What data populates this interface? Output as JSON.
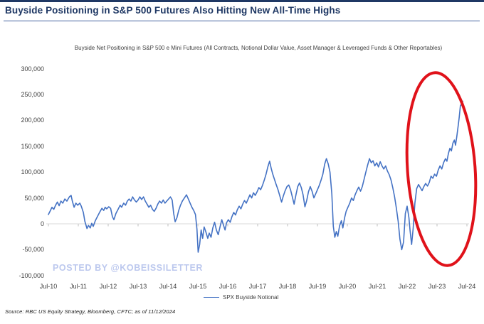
{
  "header": {
    "title": "Buyside Positioning in S&P 500 Futures Also Hitting New All-Time Highs"
  },
  "chart": {
    "subtitle": "Buyside Net Positioning in S&P 500 e Mini Futures (All Contracts, Notional Dollar Value, Asset Manager & Leveraged Funds & Other Reportables)",
    "watermark": "POSTED BY @KOBEISSILETTER",
    "legend_label": "SPX Buyside Notional"
  },
  "footer": {
    "source": "Source: RBC US Equity Strategy, Bloomberg, CFTC; as of 11/12/2024"
  },
  "colors": {
    "title_navy": "#1F3864",
    "series_blue": "#4472C4",
    "annotation_red": "#E0121A",
    "watermark_blue": "#BCC8EE",
    "axis_text": "#404040",
    "zero_line": "#D9D9D9",
    "tick_mark": "#BFBFBF"
  },
  "chart_data": {
    "type": "line",
    "title": "Buyside Net Positioning in S&P 500 e Mini Futures (All Contracts, Notional Dollar Value, Asset Manager & Leveraged Funds & Other Reportables)",
    "xlabel": "",
    "ylabel": "",
    "x_unit": "years since Jul-2010",
    "x_ticks": [
      "Jul-10",
      "Jul-11",
      "Jul-12",
      "Jul-13",
      "Jul-14",
      "Jul-15",
      "Jul-16",
      "Jul-17",
      "Jul-18",
      "Jul-19",
      "Jul-20",
      "Jul-21",
      "Jul-22",
      "Jul-23",
      "Jul-24"
    ],
    "y_ticks": [
      300000,
      250000,
      200000,
      150000,
      100000,
      50000,
      0,
      -50000,
      -100000
    ],
    "y_tick_labels": [
      "300,000",
      "250,000",
      "200,000",
      "150,000",
      "100,000",
      "50,000",
      "0",
      "-50,000",
      "-100,000"
    ],
    "ylim": [
      -100000,
      300000
    ],
    "grid": "zero-axis-only",
    "legend_position": "bottom-center",
    "annotation": {
      "shape": "ellipse",
      "color": "#E0121A",
      "covers_x": [
        "Jul-23",
        "Jul-24"
      ],
      "meaning": "circles the 2023-2024 surge to new all-time highs"
    },
    "series": [
      {
        "name": "SPX Buyside Notional",
        "color": "#4472C4",
        "points": [
          [
            0,
            18000
          ],
          [
            0.07,
            26000
          ],
          [
            0.12,
            32000
          ],
          [
            0.18,
            28000
          ],
          [
            0.24,
            36000
          ],
          [
            0.3,
            42000
          ],
          [
            0.36,
            35000
          ],
          [
            0.42,
            44000
          ],
          [
            0.48,
            40000
          ],
          [
            0.55,
            48000
          ],
          [
            0.62,
            44000
          ],
          [
            0.7,
            52000
          ],
          [
            0.76,
            55000
          ],
          [
            0.8,
            44000
          ],
          [
            0.86,
            32000
          ],
          [
            0.92,
            40000
          ],
          [
            0.98,
            36000
          ],
          [
            1.05,
            40000
          ],
          [
            1.1,
            34000
          ],
          [
            1.17,
            22000
          ],
          [
            1.22,
            5000
          ],
          [
            1.29,
            -9000
          ],
          [
            1.34,
            -3000
          ],
          [
            1.4,
            -8000
          ],
          [
            1.45,
            1000
          ],
          [
            1.5,
            -5000
          ],
          [
            1.57,
            6000
          ],
          [
            1.64,
            14000
          ],
          [
            1.72,
            23000
          ],
          [
            1.79,
            30000
          ],
          [
            1.85,
            26000
          ],
          [
            1.9,
            32000
          ],
          [
            1.95,
            29000
          ],
          [
            2.02,
            33000
          ],
          [
            2.08,
            30000
          ],
          [
            2.14,
            14000
          ],
          [
            2.19,
            8000
          ],
          [
            2.26,
            20000
          ],
          [
            2.33,
            28000
          ],
          [
            2.4,
            36000
          ],
          [
            2.45,
            32000
          ],
          [
            2.52,
            40000
          ],
          [
            2.58,
            36000
          ],
          [
            2.64,
            44000
          ],
          [
            2.7,
            48000
          ],
          [
            2.76,
            44000
          ],
          [
            2.82,
            52000
          ],
          [
            2.88,
            46000
          ],
          [
            2.94,
            42000
          ],
          [
            3,
            46000
          ],
          [
            3.06,
            52000
          ],
          [
            3.12,
            47000
          ],
          [
            3.18,
            52000
          ],
          [
            3.24,
            44000
          ],
          [
            3.3,
            38000
          ],
          [
            3.36,
            32000
          ],
          [
            3.42,
            36000
          ],
          [
            3.48,
            28000
          ],
          [
            3.54,
            24000
          ],
          [
            3.6,
            30000
          ],
          [
            3.66,
            38000
          ],
          [
            3.72,
            44000
          ],
          [
            3.78,
            40000
          ],
          [
            3.84,
            46000
          ],
          [
            3.9,
            40000
          ],
          [
            3.96,
            44000
          ],
          [
            4.02,
            48000
          ],
          [
            4.08,
            52000
          ],
          [
            4.14,
            46000
          ],
          [
            4.19,
            20000
          ],
          [
            4.24,
            4000
          ],
          [
            4.3,
            12000
          ],
          [
            4.36,
            26000
          ],
          [
            4.42,
            36000
          ],
          [
            4.48,
            44000
          ],
          [
            4.55,
            50000
          ],
          [
            4.62,
            56000
          ],
          [
            4.68,
            48000
          ],
          [
            4.74,
            40000
          ],
          [
            4.8,
            32000
          ],
          [
            4.86,
            26000
          ],
          [
            4.92,
            18000
          ],
          [
            4.97,
            -10000
          ],
          [
            5.01,
            -55000
          ],
          [
            5.06,
            -40000
          ],
          [
            5.11,
            -12000
          ],
          [
            5.16,
            -28000
          ],
          [
            5.21,
            -6000
          ],
          [
            5.27,
            -16000
          ],
          [
            5.33,
            -28000
          ],
          [
            5.38,
            -18000
          ],
          [
            5.44,
            -26000
          ],
          [
            5.5,
            -8000
          ],
          [
            5.56,
            3000
          ],
          [
            5.62,
            -12000
          ],
          [
            5.68,
            -21000
          ],
          [
            5.74,
            -6000
          ],
          [
            5.8,
            8000
          ],
          [
            5.86,
            -3000
          ],
          [
            5.91,
            -12000
          ],
          [
            5.96,
            2000
          ],
          [
            6.02,
            8000
          ],
          [
            6.08,
            3000
          ],
          [
            6.14,
            14000
          ],
          [
            6.2,
            22000
          ],
          [
            6.26,
            17000
          ],
          [
            6.32,
            27000
          ],
          [
            6.38,
            34000
          ],
          [
            6.44,
            29000
          ],
          [
            6.5,
            38000
          ],
          [
            6.56,
            45000
          ],
          [
            6.62,
            40000
          ],
          [
            6.68,
            48000
          ],
          [
            6.74,
            56000
          ],
          [
            6.8,
            50000
          ],
          [
            6.86,
            60000
          ],
          [
            6.92,
            55000
          ],
          [
            6.98,
            62000
          ],
          [
            7.04,
            70000
          ],
          [
            7.1,
            66000
          ],
          [
            7.16,
            74000
          ],
          [
            7.22,
            84000
          ],
          [
            7.28,
            96000
          ],
          [
            7.34,
            110000
          ],
          [
            7.4,
            121000
          ],
          [
            7.45,
            108000
          ],
          [
            7.5,
            97000
          ],
          [
            7.55,
            88000
          ],
          [
            7.62,
            76000
          ],
          [
            7.68,
            66000
          ],
          [
            7.74,
            54000
          ],
          [
            7.8,
            42000
          ],
          [
            7.86,
            54000
          ],
          [
            7.92,
            64000
          ],
          [
            7.98,
            72000
          ],
          [
            8.04,
            75000
          ],
          [
            8.1,
            66000
          ],
          [
            8.16,
            52000
          ],
          [
            8.22,
            38000
          ],
          [
            8.28,
            56000
          ],
          [
            8.34,
            72000
          ],
          [
            8.4,
            79000
          ],
          [
            8.46,
            70000
          ],
          [
            8.52,
            56000
          ],
          [
            8.58,
            33000
          ],
          [
            8.64,
            45000
          ],
          [
            8.7,
            62000
          ],
          [
            8.76,
            72000
          ],
          [
            8.82,
            63000
          ],
          [
            8.88,
            50000
          ],
          [
            8.94,
            58000
          ],
          [
            9,
            66000
          ],
          [
            9.06,
            74000
          ],
          [
            9.12,
            84000
          ],
          [
            9.18,
            96000
          ],
          [
            9.24,
            115000
          ],
          [
            9.3,
            126000
          ],
          [
            9.36,
            116000
          ],
          [
            9.42,
            100000
          ],
          [
            9.48,
            58000
          ],
          [
            9.53,
            -5000
          ],
          [
            9.58,
            -26000
          ],
          [
            9.63,
            -15000
          ],
          [
            9.68,
            -24000
          ],
          [
            9.74,
            -4000
          ],
          [
            9.8,
            6000
          ],
          [
            9.85,
            -8000
          ],
          [
            9.91,
            12000
          ],
          [
            9.96,
            24000
          ],
          [
            10.02,
            32000
          ],
          [
            10.08,
            40000
          ],
          [
            10.14,
            50000
          ],
          [
            10.2,
            45000
          ],
          [
            10.26,
            56000
          ],
          [
            10.32,
            64000
          ],
          [
            10.38,
            71000
          ],
          [
            10.44,
            63000
          ],
          [
            10.5,
            72000
          ],
          [
            10.56,
            86000
          ],
          [
            10.62,
            100000
          ],
          [
            10.68,
            114000
          ],
          [
            10.74,
            126000
          ],
          [
            10.8,
            118000
          ],
          [
            10.86,
            122000
          ],
          [
            10.92,
            112000
          ],
          [
            10.98,
            118000
          ],
          [
            11.04,
            110000
          ],
          [
            11.1,
            120000
          ],
          [
            11.16,
            112000
          ],
          [
            11.22,
            106000
          ],
          [
            11.28,
            112000
          ],
          [
            11.34,
            102000
          ],
          [
            11.4,
            95000
          ],
          [
            11.46,
            85000
          ],
          [
            11.52,
            70000
          ],
          [
            11.58,
            52000
          ],
          [
            11.64,
            30000
          ],
          [
            11.7,
            5000
          ],
          [
            11.76,
            -30000
          ],
          [
            11.82,
            -50000
          ],
          [
            11.88,
            -35000
          ],
          [
            11.94,
            20000
          ],
          [
            12,
            34000
          ],
          [
            12.06,
            12000
          ],
          [
            12.1,
            -14000
          ],
          [
            12.15,
            -40000
          ],
          [
            12.2,
            -10000
          ],
          [
            12.26,
            40000
          ],
          [
            12.32,
            68000
          ],
          [
            12.38,
            76000
          ],
          [
            12.44,
            70000
          ],
          [
            12.5,
            64000
          ],
          [
            12.56,
            72000
          ],
          [
            12.62,
            78000
          ],
          [
            12.68,
            73000
          ],
          [
            12.74,
            80000
          ],
          [
            12.8,
            92000
          ],
          [
            12.86,
            88000
          ],
          [
            12.92,
            96000
          ],
          [
            12.98,
            92000
          ],
          [
            13.04,
            104000
          ],
          [
            13.1,
            112000
          ],
          [
            13.16,
            106000
          ],
          [
            13.22,
            118000
          ],
          [
            13.28,
            126000
          ],
          [
            13.33,
            121000
          ],
          [
            13.38,
            136000
          ],
          [
            13.43,
            146000
          ],
          [
            13.48,
            141000
          ],
          [
            13.53,
            156000
          ],
          [
            13.58,
            162000
          ],
          [
            13.62,
            152000
          ],
          [
            13.66,
            168000
          ],
          [
            13.7,
            186000
          ],
          [
            13.74,
            205000
          ],
          [
            13.78,
            228000
          ],
          [
            13.82,
            232000
          ],
          [
            13.86,
            237000
          ]
        ]
      }
    ]
  }
}
